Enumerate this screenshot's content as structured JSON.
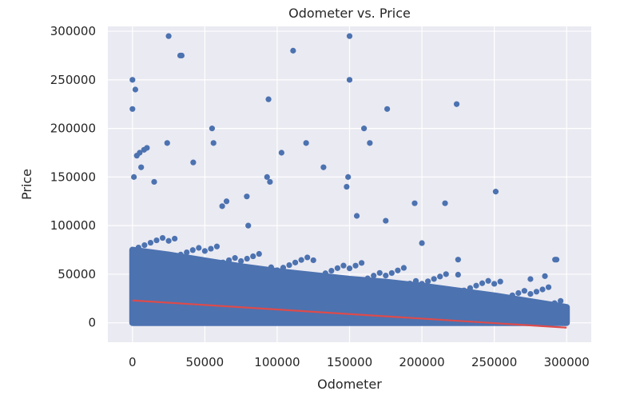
{
  "chart_data": {
    "type": "scatter",
    "title": "Odometer vs. Price",
    "xlabel": "Odometer",
    "ylabel": "Price",
    "xlim": [
      -17000,
      317000
    ],
    "ylim": [
      -20000,
      305000
    ],
    "x_ticks": [
      0,
      50000,
      100000,
      150000,
      200000,
      250000,
      300000
    ],
    "y_ticks": [
      0,
      50000,
      100000,
      150000,
      200000,
      250000,
      300000
    ],
    "grid": true,
    "legend": "none",
    "colors": {
      "background": "#eaeaf2",
      "grid": "#ffffff",
      "points": "#4c72b0",
      "fit_line": "#dd4b4b"
    },
    "series": [
      {
        "kind": "points",
        "x": [
          0,
          0,
          2000,
          3000,
          5000,
          8000,
          10000,
          25000,
          24000,
          33000,
          34000,
          55000,
          56000,
          94000,
          93000,
          103000,
          111000,
          120000,
          150000,
          150000,
          149000,
          160000,
          164000,
          176000,
          224000,
          251000,
          292000,
          293000,
          1000,
          6000,
          15000,
          42000,
          65000,
          79000,
          95000,
          132000,
          148000,
          195000,
          216000,
          275000,
          285000,
          175000,
          200000,
          225000,
          62000,
          80000,
          155000
        ],
        "y": [
          250000,
          220000,
          240000,
          172000,
          175000,
          178000,
          180000,
          295000,
          185000,
          275000,
          275000,
          200000,
          185000,
          230000,
          150000,
          175000,
          280000,
          185000,
          295000,
          250000,
          150000,
          200000,
          185000,
          220000,
          225000,
          135000,
          65000,
          65000,
          150000,
          160000,
          145000,
          165000,
          125000,
          130000,
          145000,
          160000,
          140000,
          123000,
          123000,
          45000,
          48000,
          105000,
          82000,
          65000,
          120000,
          100000,
          110000
        ]
      },
      {
        "kind": "dense-band",
        "x": [
          0,
          25000,
          50000,
          75000,
          100000,
          125000,
          150000,
          175000,
          200000,
          225000,
          250000,
          275000,
          300000
        ],
        "y_low": [
          0,
          0,
          0,
          0,
          0,
          0,
          0,
          0,
          0,
          0,
          0,
          0,
          0
        ],
        "y_high": [
          75000,
          70000,
          64000,
          58000,
          53000,
          49000,
          45000,
          42000,
          38000,
          33000,
          28000,
          22000,
          16000
        ]
      },
      {
        "kind": "fit-line",
        "x": [
          0,
          300000
        ],
        "y": [
          23000,
          -5000
        ]
      }
    ]
  }
}
